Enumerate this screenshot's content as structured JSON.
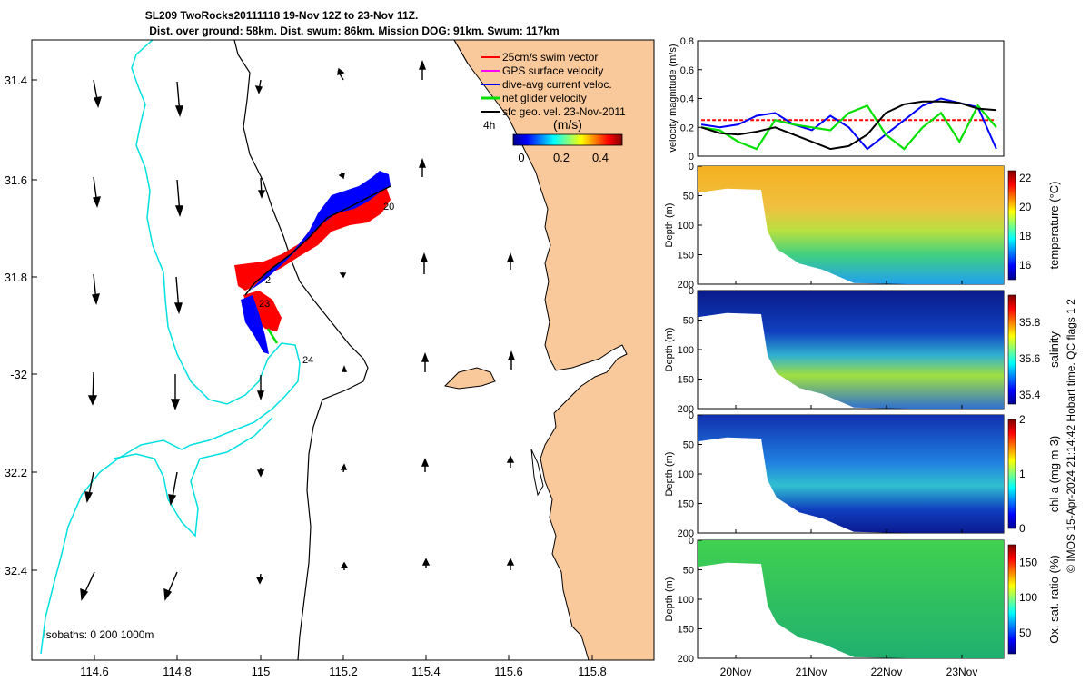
{
  "figure": {
    "title_line1": "SL209 TwoRocks20111118 19-Nov 12Z to 23-Nov 11Z.",
    "title_line2": "Dist. over ground: 58km. Dist. swum: 86km. Mission DOG: 91km. Swum: 117km",
    "credit": "© IMOS 15-Apr-2024 21:14:42 Hobart time. QC flags 1  2"
  },
  "map": {
    "lon_ticks": [
      "114.6",
      "114.8",
      "115",
      "115.2",
      "115.4",
      "115.6",
      "115.8"
    ],
    "lat_ticks": [
      "31.4",
      "31.6",
      "31.8",
      "-32",
      "32.2",
      "32.4"
    ],
    "isobath_label": "isobaths: 0   200  1000m",
    "legend": [
      {
        "label": "25cm/s swim vector",
        "color": "#ff0000"
      },
      {
        "label": "GPS surface velocity",
        "color": "#ff00ff"
      },
      {
        "label": "dive-avg current veloc.",
        "color": "#0000ff"
      },
      {
        "label": "net glider velocity",
        "color": "#00e000"
      },
      {
        "label": "sfc geo. vel. 23-Nov-2011",
        "color": "#000000"
      }
    ],
    "scale_text": "4h",
    "colorbar_title": "(m/s)",
    "colorbar_ticks": [
      "0",
      "0.2",
      "0.4"
    ],
    "day_labels": [
      "20",
      "2",
      "23",
      "24"
    ],
    "colors": {
      "land": "#f9c89b",
      "isobath_200": "#000000",
      "isobath_1000": "#00e0e0",
      "red": "#ff0000",
      "blue": "#0000ff"
    }
  },
  "chart_data": [
    {
      "type": "line",
      "ylabel": "velocity magnitude (m/s)",
      "ylim": [
        0,
        0.8
      ],
      "yticks": [
        "0",
        "0.2",
        "0.4",
        "0.6",
        "0.8"
      ],
      "x": [
        19.5,
        19.75,
        20.0,
        20.25,
        20.5,
        20.75,
        21.0,
        21.25,
        21.5,
        21.75,
        22.0,
        22.25,
        22.5,
        22.75,
        23.0,
        23.25,
        23.5
      ],
      "series": [
        {
          "color": "#ff0000",
          "values": [
            0.25,
            0.25,
            0.25,
            0.25,
            0.25,
            0.25,
            0.25,
            0.25,
            0.25,
            0.25,
            0.25,
            0.25,
            0.25,
            0.25,
            0.25,
            0.25,
            0.25
          ]
        },
        {
          "color": "#0000ff",
          "values": [
            0.22,
            0.2,
            0.22,
            0.28,
            0.3,
            0.22,
            0.18,
            0.28,
            0.2,
            0.05,
            0.15,
            0.25,
            0.35,
            0.4,
            0.37,
            0.34,
            0.05
          ]
        },
        {
          "color": "#00e000",
          "values": [
            0.2,
            0.18,
            0.1,
            0.05,
            0.25,
            0.22,
            0.2,
            0.18,
            0.3,
            0.35,
            0.15,
            0.05,
            0.2,
            0.3,
            0.1,
            0.35,
            0.2
          ]
        },
        {
          "color": "#000000",
          "values": [
            0.2,
            0.16,
            0.15,
            0.17,
            0.2,
            0.15,
            0.1,
            0.05,
            0.07,
            0.15,
            0.3,
            0.36,
            0.38,
            0.38,
            0.37,
            0.33,
            0.32
          ]
        }
      ]
    },
    {
      "type": "heatmap",
      "variable": "temperature (°C)",
      "ylabel": "Depth (m)",
      "ylim": [
        200,
        0
      ],
      "clim": [
        15,
        22.5
      ],
      "cbar_ticks": [
        "16",
        "18",
        "20",
        "22"
      ],
      "colormap": "jet"
    },
    {
      "type": "heatmap",
      "variable": "salinity",
      "ylabel": "Depth (m)",
      "ylim": [
        200,
        0
      ],
      "clim": [
        35.35,
        35.95
      ],
      "cbar_ticks": [
        "35.4",
        "35.6",
        "35.8"
      ],
      "colormap": "jet"
    },
    {
      "type": "heatmap",
      "variable": "chl-a (mg m-3)",
      "ylabel": "Depth (m)",
      "ylim": [
        200,
        0
      ],
      "clim": [
        0,
        2
      ],
      "cbar_ticks": [
        "0",
        "1",
        "2"
      ],
      "colormap": "jet"
    },
    {
      "type": "heatmap",
      "variable": "Ox. sat. ratio (%)",
      "ylabel": "Depth (m)",
      "ylim": [
        200,
        0
      ],
      "clim": [
        20,
        175
      ],
      "cbar_ticks": [
        "50",
        "100",
        "150"
      ],
      "colormap": "jet"
    }
  ],
  "time_axis": {
    "ticks": [
      "20Nov",
      "21Nov",
      "22Nov",
      "23Nov"
    ]
  },
  "depth_ticks": [
    "0",
    "50",
    "100",
    "150",
    "200"
  ]
}
